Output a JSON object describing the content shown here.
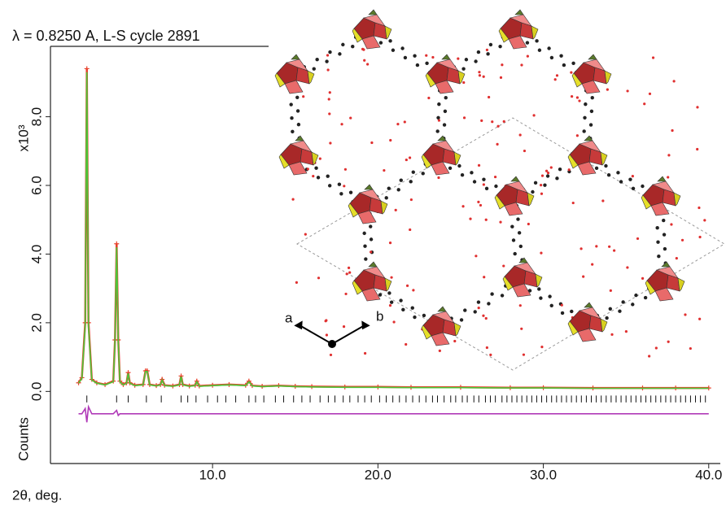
{
  "chart_data": {
    "type": "line",
    "title": "λ = 0.8250 A, L-S cycle 2891",
    "xlabel": "2θ, deg.",
    "ylabel": "Counts",
    "ylabel_multiplier": "x10³",
    "annotations": [
      "a",
      "b"
    ],
    "xlim": [
      0.2,
      40.7
    ],
    "ylim": [
      -2.1,
      10.05
    ],
    "xticks": [
      {
        "value": 10,
        "label": "10.0"
      },
      {
        "value": 20,
        "label": "20.0"
      },
      {
        "value": 30,
        "label": "30.0"
      },
      {
        "value": 40,
        "label": "40.0"
      }
    ],
    "yticks": [
      {
        "value": 0,
        "label": "0.0"
      },
      {
        "value": 2,
        "label": "2.0"
      },
      {
        "value": 4,
        "label": "4.0"
      },
      {
        "value": 6,
        "label": "6.0"
      },
      {
        "value": 8,
        "label": "8.0"
      }
    ],
    "x": [
      1.9,
      2.1,
      2.3,
      2.4,
      2.5,
      2.7,
      3.0,
      3.5,
      4.0,
      4.1,
      4.2,
      4.3,
      4.4,
      4.6,
      4.8,
      4.9,
      5.0,
      5.3,
      5.8,
      5.95,
      6.05,
      6.2,
      6.6,
      6.85,
      6.95,
      7.1,
      7.6,
      8.0,
      8.1,
      8.2,
      8.6,
      8.95,
      9.05,
      9.2,
      10,
      11,
      12,
      12.2,
      12.4,
      13,
      14,
      15,
      16,
      18,
      20,
      22,
      25,
      28,
      30,
      33,
      36,
      38,
      40
    ],
    "series": [
      {
        "color": "#e8402a",
        "values": [
          0.25,
          0.4,
          2.0,
          9.4,
          2.0,
          0.35,
          0.25,
          0.2,
          0.3,
          1.5,
          4.3,
          1.5,
          0.3,
          0.2,
          0.25,
          0.55,
          0.25,
          0.18,
          0.2,
          0.6,
          0.6,
          0.2,
          0.17,
          0.2,
          0.35,
          0.18,
          0.16,
          0.2,
          0.45,
          0.2,
          0.16,
          0.18,
          0.3,
          0.16,
          0.18,
          0.2,
          0.18,
          0.3,
          0.17,
          0.15,
          0.17,
          0.15,
          0.14,
          0.13,
          0.13,
          0.12,
          0.12,
          0.11,
          0.11,
          0.1,
          0.1,
          0.1,
          0.1
        ]
      },
      {
        "color": "#4cc63a",
        "values": [
          0.24,
          0.38,
          1.9,
          9.3,
          1.9,
          0.33,
          0.24,
          0.19,
          0.28,
          1.45,
          4.2,
          1.45,
          0.28,
          0.19,
          0.24,
          0.53,
          0.24,
          0.17,
          0.19,
          0.58,
          0.58,
          0.19,
          0.16,
          0.19,
          0.33,
          0.17,
          0.15,
          0.19,
          0.43,
          0.19,
          0.15,
          0.17,
          0.28,
          0.15,
          0.17,
          0.19,
          0.17,
          0.28,
          0.16,
          0.14,
          0.16,
          0.14,
          0.13,
          0.12,
          0.12,
          0.11,
          0.11,
          0.1,
          0.1,
          0.09,
          0.09,
          0.09,
          0.09
        ]
      },
      {
        "color": "#b03ab8",
        "values": [
          -0.65,
          -0.65,
          -0.5,
          -0.9,
          -0.45,
          -0.65,
          -0.65,
          -0.65,
          -0.65,
          -0.6,
          -0.55,
          -0.7,
          -0.65,
          -0.65,
          -0.65,
          -0.65,
          -0.65,
          -0.65,
          -0.65,
          -0.65,
          -0.65,
          -0.65,
          -0.65,
          -0.65,
          -0.65,
          -0.65,
          -0.65,
          -0.65,
          -0.65,
          -0.65,
          -0.65,
          -0.65,
          -0.65,
          -0.65,
          -0.65,
          -0.65,
          -0.65,
          -0.65,
          -0.65,
          -0.65,
          -0.65,
          -0.65,
          -0.65,
          -0.65,
          -0.65,
          -0.65,
          -0.65,
          -0.65,
          -0.65,
          -0.65,
          -0.65,
          -0.65,
          -0.65
        ]
      }
    ],
    "reflections": [
      2.4,
      4.2,
      4.9,
      6.0,
      6.9,
      8.1,
      8.5,
      9.0,
      9.7,
      10.3,
      10.8,
      11.4,
      12.2,
      12.6,
      13.1,
      13.8,
      14.3,
      14.9,
      15.4,
      15.9,
      16.5,
      17.0,
      17.4,
      17.9,
      18.3,
      18.8,
      19.2,
      19.6,
      20.1,
      20.5,
      20.9,
      21.3,
      21.7,
      22.1,
      22.5,
      22.9,
      23.3,
      23.6,
      24.0,
      24.4,
      24.7,
      25.1,
      25.4,
      25.8,
      26.1,
      26.5,
      26.8,
      27.1,
      27.5,
      27.8,
      28.1,
      28.4,
      28.7,
      29.0,
      29.3,
      29.6,
      29.9,
      30.2,
      30.5,
      30.8,
      31.1,
      31.4,
      31.7,
      32.0,
      32.3,
      32.6,
      32.9,
      33.2,
      33.5,
      33.8,
      34.1,
      34.4,
      34.7,
      35.0,
      35.3,
      35.6,
      35.9,
      36.2,
      36.5,
      36.8,
      37.1,
      37.4,
      37.7,
      38.0,
      38.3,
      38.6,
      38.9,
      39.2,
      39.5,
      39.8
    ]
  }
}
